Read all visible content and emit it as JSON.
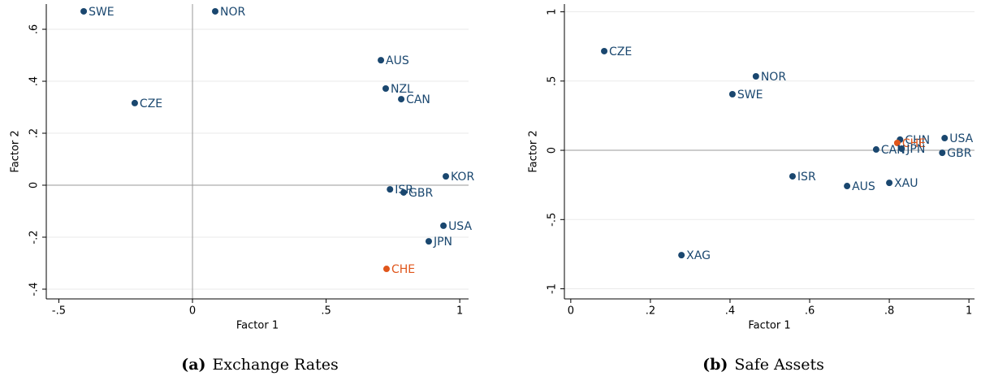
{
  "chart_data": [
    {
      "type": "scatter",
      "caption_tag": "(a)",
      "caption": "Exchange Rates",
      "xlabel": "Factor 1",
      "ylabel": "Factor 2",
      "labels": [
        "SWE",
        "NOR",
        "AUS",
        "NZL",
        "CAN",
        "CZE",
        "KOR",
        "ISR",
        "GBR",
        "USA",
        "JPN",
        "CHE"
      ],
      "x": [
        -0.407,
        0.085,
        0.705,
        0.723,
        0.781,
        -0.216,
        0.948,
        0.739,
        0.79,
        0.939,
        0.884,
        0.726
      ],
      "y": [
        0.669,
        0.669,
        0.481,
        0.372,
        0.331,
        0.316,
        0.034,
        -0.016,
        -0.028,
        -0.156,
        -0.216,
        -0.322
      ],
      "colors": [
        "#1a476f",
        "#1a476f",
        "#1a476f",
        "#1a476f",
        "#1a476f",
        "#1a476f",
        "#1a476f",
        "#1a476f",
        "#1a476f",
        "#1a476f",
        "#1a476f",
        "#e0561b"
      ],
      "xlim": [
        -0.547,
        1.033
      ],
      "ylim": [
        -0.4375,
        0.697
      ],
      "xticks": [
        {
          "value": -0.5,
          "label": "-.5"
        },
        0,
        {
          "value": 0.5,
          "label": ".5"
        },
        1
      ],
      "yticks": [
        {
          "value": -0.4,
          "label": "-.4"
        },
        {
          "value": -0.2,
          "label": "-.2"
        },
        0,
        {
          "value": 0.2,
          "label": ".2"
        },
        {
          "value": 0.4,
          "label": ".4"
        },
        {
          "value": 0.6,
          "label": ".6"
        }
      ],
      "grid": true,
      "hlines": [
        0
      ],
      "vlines": [
        0
      ]
    },
    {
      "type": "scatter",
      "caption_tag": "(b)",
      "caption": "Safe Assets",
      "xlabel": "Factor 1",
      "ylabel": "Factor 2",
      "labels": [
        "CZE",
        "NOR",
        "SWE",
        "CHN",
        "USA",
        "CHE",
        "JPN",
        "CAN",
        "GBR",
        "ISR",
        "AUS",
        "XAU",
        "XAG"
      ],
      "x": [
        0.084,
        0.465,
        0.406,
        0.827,
        0.939,
        0.82,
        0.831,
        0.767,
        0.933,
        0.557,
        0.694,
        0.8,
        0.278
      ],
      "y": [
        0.716,
        0.534,
        0.405,
        0.077,
        0.088,
        0.053,
        0.012,
        0.006,
        -0.018,
        -0.188,
        -0.258,
        -0.235,
        -0.757
      ],
      "colors": [
        "#1a476f",
        "#1a476f",
        "#1a476f",
        "#1a476f",
        "#1a476f",
        "#e0561b",
        "#1a476f",
        "#1a476f",
        "#1a476f",
        "#1a476f",
        "#1a476f",
        "#1a476f",
        "#1a476f"
      ],
      "xlim": [
        -0.016,
        1.014
      ],
      "ylim": [
        -1.073,
        1.056
      ],
      "xticks": [
        0,
        {
          "value": 0.2,
          "label": ".2"
        },
        {
          "value": 0.4,
          "label": ".4"
        },
        {
          "value": 0.6,
          "label": ".6"
        },
        {
          "value": 0.8,
          "label": ".8"
        },
        1
      ],
      "yticks": [
        -1,
        {
          "value": -0.5,
          "label": "-.5"
        },
        0,
        {
          "value": 0.5,
          "label": ".5"
        },
        1
      ],
      "grid": true,
      "hlines": [
        0
      ],
      "vlines": []
    }
  ]
}
